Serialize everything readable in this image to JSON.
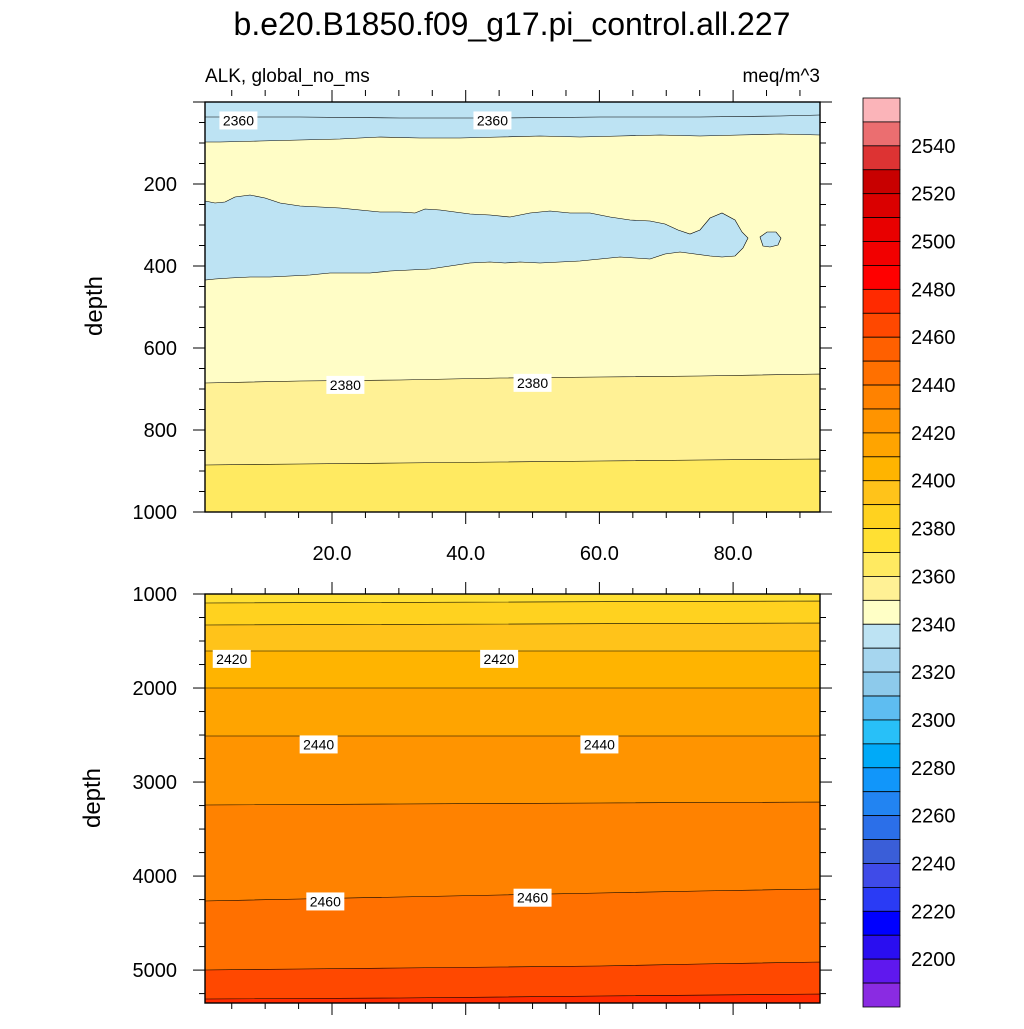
{
  "chart_data": [
    {
      "type": "contour",
      "title": "b.e20.B1850.f09_g17.pi_control.all.227",
      "left_subtitle": "ALK, global_no_ms",
      "right_subtitle": "meq/m^3",
      "ylabel": "depth",
      "xlim": [
        1,
        93
      ],
      "ylim": [
        1000,
        0
      ],
      "x_ticks": [
        20,
        40,
        60,
        80
      ],
      "x_tick_labels": [
        "20.0",
        "40.0",
        "60.0",
        "80.0"
      ],
      "y_ticks": [
        200,
        400,
        600,
        800,
        1000
      ],
      "y_tick_labels": [
        "200",
        "400",
        "600",
        "800",
        "1000"
      ],
      "contour_levels": [
        2360,
        2370,
        2380,
        2390
      ],
      "contour_labels": [
        {
          "text": "2360",
          "x": 6,
          "y": 45
        },
        {
          "text": "2360",
          "x": 44,
          "y": 45
        },
        {
          "text": "2380",
          "x": 22,
          "y": 690
        },
        {
          "text": "2380",
          "x": 50,
          "y": 685
        }
      ]
    },
    {
      "type": "contour",
      "ylabel": "depth",
      "xlim": [
        1,
        93
      ],
      "ylim": [
        5350,
        1000
      ],
      "y_ticks": [
        1000,
        2000,
        3000,
        4000,
        5000
      ],
      "y_tick_labels": [
        "1000",
        "2000",
        "3000",
        "4000",
        "5000"
      ],
      "contour_levels": [
        2400,
        2410,
        2420,
        2430,
        2440,
        2450,
        2460,
        2470,
        2480
      ],
      "contour_labels": [
        {
          "text": "2420",
          "x": 5,
          "y": 1690
        },
        {
          "text": "2420",
          "x": 45,
          "y": 1690
        },
        {
          "text": "2440",
          "x": 18,
          "y": 2600
        },
        {
          "text": "2440",
          "x": 60,
          "y": 2600
        },
        {
          "text": "2460",
          "x": 19,
          "y": 4270
        },
        {
          "text": "2460",
          "x": 50,
          "y": 4230
        }
      ]
    }
  ],
  "colorbar": {
    "labels": [
      "2540",
      "2520",
      "2500",
      "2480",
      "2460",
      "2440",
      "2420",
      "2400",
      "2380",
      "2360",
      "2340",
      "2320",
      "2300",
      "2280",
      "2260",
      "2240",
      "2220",
      "2200"
    ],
    "colors": [
      "#fbb4b9",
      "#eb6e70",
      "#dd3333",
      "#c80000",
      "#da0000",
      "#e80000",
      "#f20000",
      "#ff0000",
      "#ff2a00",
      "#ff4800",
      "#ff6000",
      "#ff7000",
      "#ff8200",
      "#ff9400",
      "#ffa400",
      "#ffb400",
      "#ffc31a",
      "#ffd21f",
      "#ffe033",
      "#ffea61",
      "#fff195",
      "#ffffc6",
      "#bde3f3",
      "#a6d6ef",
      "#8dcaeb",
      "#5ebdf1",
      "#28c0f8",
      "#00aaf8",
      "#1196fa",
      "#2284f2",
      "#2b6fe9",
      "#3a5ed8",
      "#3f4be8",
      "#2a3bf5",
      "#0000ff",
      "#2a0ef0",
      "#5f18ee",
      "#8a2be2"
    ]
  }
}
